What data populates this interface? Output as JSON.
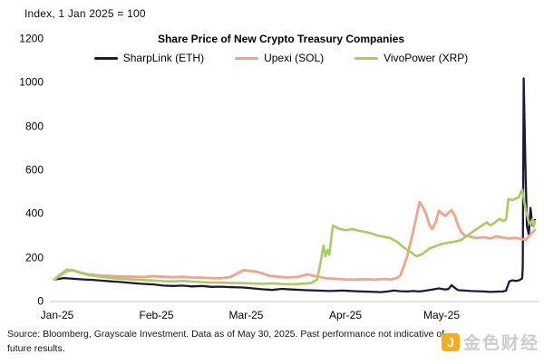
{
  "meta": {
    "index_note": "Index, 1 Jan 2025 = 100"
  },
  "chart_data": {
    "type": "line",
    "title": "Share Price of New Crypto Treasury Companies",
    "grid": false,
    "legend_position": "top",
    "x_axis": {
      "tick_labels": [
        "Jan-25",
        "Feb-25",
        "Mar-25",
        "Apr-25",
        "May-25"
      ],
      "tick_days": [
        0,
        31,
        59,
        90,
        120
      ],
      "domain_days": [
        0,
        150
      ]
    },
    "y_axis": {
      "ticks": [
        0,
        200,
        400,
        600,
        800,
        1000,
        1200
      ],
      "min": 0,
      "max": 1200
    },
    "series": [
      {
        "name": "SharpLink (ETH)",
        "color": "#201741",
        "points": [
          [
            0,
            100
          ],
          [
            3,
            107
          ],
          [
            6,
            104
          ],
          [
            9,
            101
          ],
          [
            12,
            99
          ],
          [
            15,
            95
          ],
          [
            18,
            92
          ],
          [
            21,
            89
          ],
          [
            24,
            85
          ],
          [
            27,
            81
          ],
          [
            31,
            78
          ],
          [
            34,
            73
          ],
          [
            37,
            71
          ],
          [
            40,
            73
          ],
          [
            43,
            69
          ],
          [
            46,
            71
          ],
          [
            49,
            67
          ],
          [
            52,
            68
          ],
          [
            55,
            66
          ],
          [
            59,
            64
          ],
          [
            62,
            60
          ],
          [
            65,
            56
          ],
          [
            68,
            53
          ],
          [
            71,
            58
          ],
          [
            74,
            55
          ],
          [
            78,
            52
          ],
          [
            82,
            50
          ],
          [
            86,
            48
          ],
          [
            90,
            50
          ],
          [
            94,
            47
          ],
          [
            98,
            45
          ],
          [
            102,
            43
          ],
          [
            104,
            46
          ],
          [
            106,
            50
          ],
          [
            108,
            47
          ],
          [
            110,
            46
          ],
          [
            112,
            48
          ],
          [
            114,
            46
          ],
          [
            116,
            50
          ],
          [
            118,
            55
          ],
          [
            120,
            60
          ],
          [
            122,
            55
          ],
          [
            123,
            57
          ],
          [
            124,
            75
          ],
          [
            125,
            62
          ],
          [
            126,
            52
          ],
          [
            128,
            50
          ],
          [
            130,
            48
          ],
          [
            132,
            47
          ],
          [
            134,
            46
          ],
          [
            136,
            44
          ],
          [
            138,
            45
          ],
          [
            140,
            46
          ],
          [
            141,
            50
          ],
          [
            142,
            92
          ],
          [
            143,
            97
          ],
          [
            144,
            94
          ],
          [
            145,
            97
          ],
          [
            146,
            105
          ],
          [
            146.2,
            160
          ],
          [
            146.5,
            1020
          ],
          [
            147.1,
            560
          ],
          [
            147.5,
            345
          ],
          [
            148.1,
            305
          ],
          [
            148.6,
            428
          ],
          [
            149.2,
            348
          ],
          [
            150,
            373
          ]
        ]
      },
      {
        "name": "Upexi (SOL)",
        "color": "#f3a28c",
        "points": [
          [
            0,
            100
          ],
          [
            2,
            126
          ],
          [
            4,
            146
          ],
          [
            6,
            141
          ],
          [
            8,
            133
          ],
          [
            10,
            126
          ],
          [
            13,
            121
          ],
          [
            16,
            118
          ],
          [
            19,
            116
          ],
          [
            22,
            114
          ],
          [
            25,
            113
          ],
          [
            28,
            112
          ],
          [
            31,
            116
          ],
          [
            34,
            113
          ],
          [
            37,
            111
          ],
          [
            40,
            113
          ],
          [
            43,
            110
          ],
          [
            46,
            109
          ],
          [
            49,
            107
          ],
          [
            52,
            106
          ],
          [
            55,
            112
          ],
          [
            57,
            128
          ],
          [
            59,
            143
          ],
          [
            61,
            140
          ],
          [
            63,
            137
          ],
          [
            65,
            128
          ],
          [
            67,
            118
          ],
          [
            70,
            113
          ],
          [
            73,
            110
          ],
          [
            76,
            112
          ],
          [
            79,
            124
          ],
          [
            82,
            114
          ],
          [
            85,
            106
          ],
          [
            88,
            104
          ],
          [
            91,
            101
          ],
          [
            94,
            100
          ],
          [
            97,
            102
          ],
          [
            100,
            100
          ],
          [
            103,
            103
          ],
          [
            105,
            101
          ],
          [
            107,
            108
          ],
          [
            108,
            120
          ],
          [
            110,
            200
          ],
          [
            112,
            320
          ],
          [
            114,
            455
          ],
          [
            115,
            432
          ],
          [
            116,
            400
          ],
          [
            117,
            352
          ],
          [
            118,
            332
          ],
          [
            119,
            362
          ],
          [
            120,
            415
          ],
          [
            121,
            402
          ],
          [
            122,
            392
          ],
          [
            124,
            418
          ],
          [
            125,
            392
          ],
          [
            126,
            348
          ],
          [
            127,
            318
          ],
          [
            128,
            302
          ],
          [
            130,
            296
          ],
          [
            132,
            290
          ],
          [
            134,
            294
          ],
          [
            136,
            288
          ],
          [
            138,
            298
          ],
          [
            140,
            292
          ],
          [
            142,
            288
          ],
          [
            144,
            291
          ],
          [
            146,
            286
          ],
          [
            147,
            281
          ],
          [
            148,
            296
          ],
          [
            149,
            313
          ],
          [
            150,
            327
          ]
        ]
      },
      {
        "name": "VivoPower (XRP)",
        "color": "#a7cd60",
        "points": [
          [
            0,
            100
          ],
          [
            2,
            121
          ],
          [
            4,
            139
          ],
          [
            6,
            143
          ],
          [
            8,
            131
          ],
          [
            10,
            123
          ],
          [
            13,
            116
          ],
          [
            16,
            111
          ],
          [
            19,
            106
          ],
          [
            22,
            103
          ],
          [
            25,
            100
          ],
          [
            28,
            98
          ],
          [
            31,
            96
          ],
          [
            34,
            93
          ],
          [
            37,
            92
          ],
          [
            40,
            94
          ],
          [
            43,
            91
          ],
          [
            46,
            89
          ],
          [
            49,
            87
          ],
          [
            52,
            86
          ],
          [
            55,
            85
          ],
          [
            59,
            84
          ],
          [
            62,
            82
          ],
          [
            65,
            81
          ],
          [
            68,
            83
          ],
          [
            71,
            80
          ],
          [
            74,
            79
          ],
          [
            77,
            81
          ],
          [
            80,
            84
          ],
          [
            82,
            100
          ],
          [
            83,
            172
          ],
          [
            84,
            256
          ],
          [
            84.6,
            206
          ],
          [
            85.2,
            236
          ],
          [
            85.8,
            214
          ],
          [
            86.5,
            298
          ],
          [
            87,
            348
          ],
          [
            88,
            338
          ],
          [
            89,
            332
          ],
          [
            91,
            326
          ],
          [
            93,
            331
          ],
          [
            95,
            323
          ],
          [
            97,
            318
          ],
          [
            99,
            311
          ],
          [
            101,
            301
          ],
          [
            103,
            296
          ],
          [
            105,
            289
          ],
          [
            107,
            272
          ],
          [
            109,
            248
          ],
          [
            111,
            228
          ],
          [
            113,
            207
          ],
          [
            115,
            218
          ],
          [
            117,
            242
          ],
          [
            119,
            253
          ],
          [
            121,
            263
          ],
          [
            123,
            269
          ],
          [
            125,
            274
          ],
          [
            127,
            281
          ],
          [
            129,
            303
          ],
          [
            131,
            323
          ],
          [
            133,
            343
          ],
          [
            135,
            362
          ],
          [
            136,
            348
          ],
          [
            137,
            356
          ],
          [
            138,
            368
          ],
          [
            139,
            378
          ],
          [
            140,
            368
          ],
          [
            141,
            375
          ],
          [
            141.7,
            468
          ],
          [
            143,
            464
          ],
          [
            144,
            471
          ],
          [
            145,
            477
          ],
          [
            146,
            512
          ],
          [
            146.6,
            462
          ],
          [
            147.3,
            408
          ],
          [
            148,
            368
          ],
          [
            148.6,
            352
          ],
          [
            149.2,
            376
          ],
          [
            149.6,
            341
          ],
          [
            150,
            367
          ]
        ]
      }
    ]
  },
  "footer": {
    "source": "Source: Bloomberg, Grayscale Investment. Data as of May 30, 2025. Past performance not indicative of future results."
  },
  "watermark": {
    "text": "金色财经",
    "logo_glyph": "J",
    "logo_color": "#f6a60b"
  }
}
